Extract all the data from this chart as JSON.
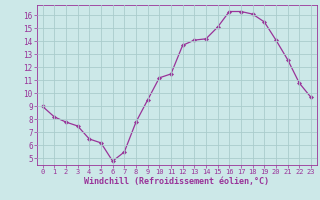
{
  "x": [
    0,
    1,
    2,
    3,
    4,
    5,
    6,
    7,
    8,
    9,
    10,
    11,
    12,
    13,
    14,
    15,
    16,
    17,
    18,
    19,
    20,
    21,
    22,
    23
  ],
  "y": [
    9.0,
    8.2,
    7.8,
    7.5,
    6.5,
    6.2,
    4.8,
    5.5,
    7.8,
    9.5,
    11.2,
    11.5,
    13.7,
    14.1,
    14.2,
    15.1,
    16.3,
    16.3,
    16.1,
    15.5,
    14.1,
    12.6,
    10.8,
    9.7
  ],
  "line_color": "#993399",
  "marker": "D",
  "marker_size": 2.2,
  "bg_color": "#cce8e8",
  "grid_color": "#aacccc",
  "xlabel": "Windchill (Refroidissement éolien,°C)",
  "xlabel_color": "#993399",
  "ylabel_ticks": [
    5,
    6,
    7,
    8,
    9,
    10,
    11,
    12,
    13,
    14,
    15,
    16
  ],
  "xlim": [
    -0.5,
    23.5
  ],
  "ylim": [
    4.5,
    16.8
  ],
  "tick_color": "#993399",
  "axis_color": "#993399",
  "tick_fontsize": 5.0,
  "xlabel_fontsize": 6.0
}
